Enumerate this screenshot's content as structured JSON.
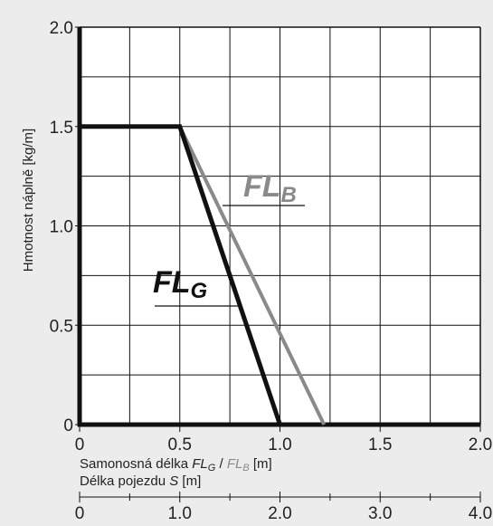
{
  "chart_data": {
    "type": "line",
    "ylabel": "Hmotnost náplně [kg/m]",
    "xlabel": {
      "prefix": "Samonosná délka ",
      "fl_g": "FL",
      "fl_g_sub": "G",
      "sep": " / ",
      "fl_b": "FL",
      "fl_b_sub": "B",
      "unit": " [m]"
    },
    "xlabel2": {
      "prefix": "Délka pojezdu ",
      "var": "S",
      "unit": " [m]"
    },
    "xlim": [
      0,
      2.0
    ],
    "ylim": [
      0,
      2.0
    ],
    "grid": true,
    "x_ticks": [
      "0",
      "0.5",
      "1.0",
      "1.5",
      "2.0"
    ],
    "y_ticks": [
      "0",
      "0.5",
      "1.0",
      "1.5",
      "2.0"
    ],
    "x2_ticks": [
      "0",
      "1.0",
      "2.0",
      "3.0",
      "4.0"
    ],
    "series": [
      {
        "name": "FL",
        "sub": "G",
        "color": "#111111",
        "x": [
          0,
          0.5,
          1.0
        ],
        "y": [
          1.5,
          1.5,
          0
        ]
      },
      {
        "name": "FL",
        "sub": "B",
        "color": "#8a8a8a",
        "x": [
          0.5,
          1.22
        ],
        "y": [
          1.5,
          0
        ]
      }
    ]
  }
}
